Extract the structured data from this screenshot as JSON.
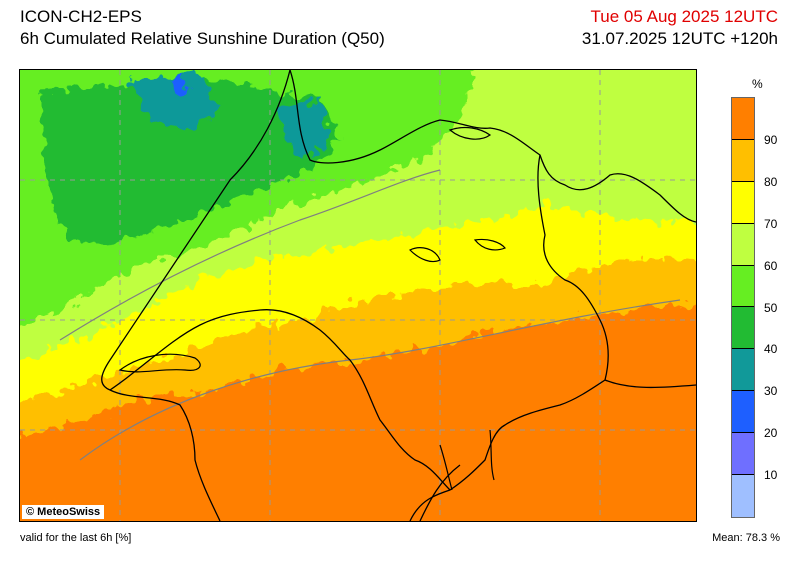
{
  "header": {
    "model": "ICON-CH2-EPS",
    "product": "6h Cumulated Relative Sunshine Duration (Q50)",
    "valid_time": "Tue 05 Aug 2025 12UTC",
    "run_info": "31.07.2025 12UTC +120h"
  },
  "map": {
    "copyright": "© MeteoSwiss"
  },
  "legend": {
    "unit": "%",
    "ticks": [
      "90",
      "80",
      "70",
      "60",
      "50",
      "40",
      "30",
      "20",
      "10"
    ],
    "colors": [
      "#ff7f00",
      "#ffbf00",
      "#ffff00",
      "#bfff40",
      "#66ee22",
      "#22bb33",
      "#119999",
      "#1e5fff",
      "#6f6fff",
      "#9fbfff"
    ]
  },
  "footer": {
    "note": "valid for the last 6h [%]",
    "mean_label": "Mean:",
    "mean_value": "78.3 %"
  }
}
